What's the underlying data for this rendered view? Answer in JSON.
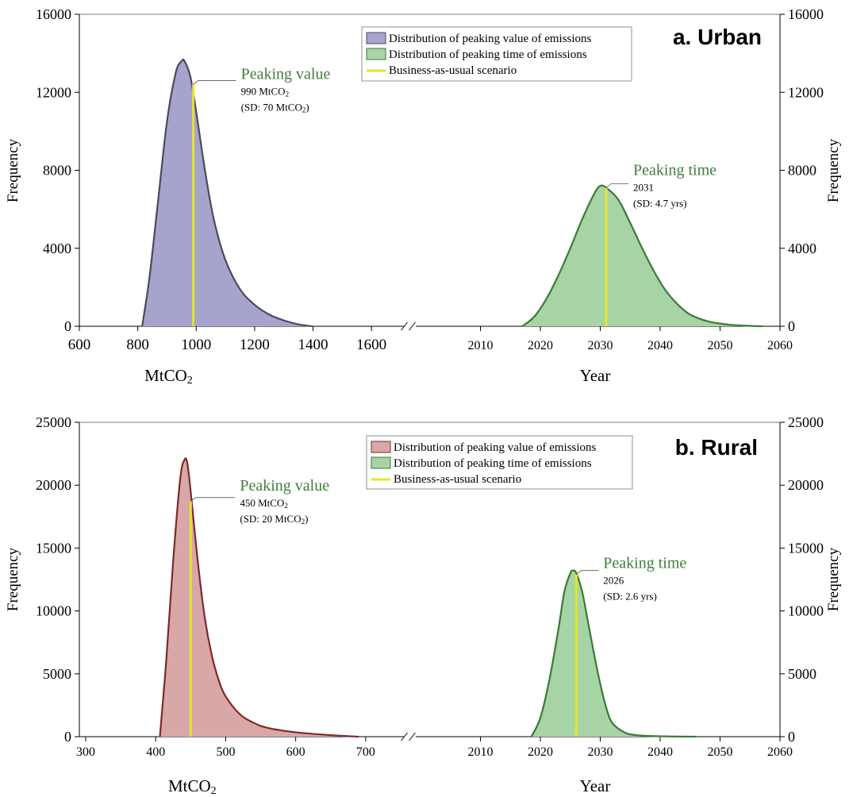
{
  "colors": {
    "value_fill_urban": "#a6a4cc",
    "value_stroke_urban": "#4a4a5e",
    "value_fill_rural": "#d9a7a7",
    "value_stroke_rural": "#7a2a2a",
    "time_fill": "#a7d4a4",
    "time_stroke": "#3a7a38",
    "bau_line": "#e4e62a",
    "annotation_text": "#3f7f3b"
  },
  "chart_data": [
    {
      "type": "area",
      "panel_label": "a. Urban",
      "left_axis": {
        "xlabel": "MtCO",
        "xlabel_sub": "2",
        "x_range": [
          600,
          1700
        ],
        "x_ticks": [
          "600",
          "800",
          "1000",
          "1200",
          "1400",
          "1600"
        ],
        "x_tick_values": [
          600,
          800,
          1000,
          1200,
          1400,
          1600
        ]
      },
      "right_axis": {
        "xlabel": "Year",
        "x_range": [
          2000,
          2060
        ],
        "x_ticks": [
          "2010",
          "2020",
          "2030",
          "2040",
          "2050",
          "2060"
        ],
        "x_tick_values": [
          2010,
          2020,
          2030,
          2040,
          2050,
          2060
        ]
      },
      "ylabel": "Frequency",
      "ylim": [
        0,
        16000
      ],
      "y_ticks": [
        "0",
        "4000",
        "8000",
        "12000",
        "16000"
      ],
      "y_tick_values": [
        0,
        4000,
        8000,
        12000,
        16000
      ],
      "legend": [
        "Distribution of peaking value of emissions",
        "Distribution of peaking time of emissions",
        "Business-as-usual scenario"
      ],
      "series": [
        {
          "axis": "left",
          "x": [
            815,
            840,
            870,
            900,
            930,
            950,
            960,
            980,
            1000,
            1030,
            1060,
            1100,
            1150,
            1200,
            1250,
            1300,
            1350,
            1395
          ],
          "y": [
            0,
            2500,
            6500,
            10500,
            13000,
            13600,
            13600,
            12800,
            11000,
            8000,
            5500,
            3400,
            1900,
            1100,
            600,
            300,
            100,
            0
          ]
        },
        {
          "axis": "right",
          "x": [
            2017,
            2019,
            2021,
            2023,
            2025,
            2027,
            2029,
            2030,
            2031,
            2033,
            2035,
            2037,
            2039,
            2041,
            2043,
            2045,
            2048,
            2051,
            2054,
            2057
          ],
          "y": [
            0,
            500,
            1400,
            2600,
            4000,
            5500,
            6800,
            7200,
            7100,
            6500,
            5300,
            4000,
            2800,
            1800,
            1100,
            600,
            250,
            100,
            30,
            0
          ]
        }
      ],
      "annotations": [
        {
          "axis": "left",
          "x": 990,
          "y": 12400,
          "title": "Peaking value",
          "line1": "990 MtCO",
          "line1_sub": "2",
          "line2_pre": "(SD: 70 MtCO",
          "line2_sub": "2",
          "line2_post": ")"
        },
        {
          "axis": "right",
          "x": 2031,
          "y": 7100,
          "title": "Peaking time",
          "line1": "2031",
          "line1_sub": "",
          "line2_pre": "(SD: 4.7 yrs)",
          "line2_sub": "",
          "line2_post": ""
        }
      ]
    },
    {
      "type": "area",
      "panel_label": "b. Rural",
      "left_axis": {
        "xlabel": "MtCO",
        "xlabel_sub": "2",
        "x_range": [
          300,
          750
        ],
        "x_ticks": [
          "300",
          "400",
          "500",
          "600",
          "700"
        ],
        "x_tick_values": [
          300,
          400,
          500,
          600,
          700
        ]
      },
      "right_axis": {
        "xlabel": "Year",
        "x_range": [
          2000,
          2060
        ],
        "x_ticks": [
          "2010",
          "2020",
          "2030",
          "2040",
          "2050",
          "2060"
        ],
        "x_tick_values": [
          2010,
          2020,
          2030,
          2040,
          2050,
          2060
        ]
      },
      "ylabel": "Frequency",
      "ylim": [
        0,
        25000
      ],
      "y_ticks": [
        "0",
        "5000",
        "10000",
        "15000",
        "20000",
        "25000"
      ],
      "y_tick_values": [
        0,
        5000,
        10000,
        15000,
        20000,
        25000
      ],
      "legend": [
        "Distribution of peaking value of emissions",
        "Distribution of peaking time of emissions",
        "Business-as-usual scenario"
      ],
      "series": [
        {
          "axis": "left",
          "x": [
            406,
            415,
            425,
            435,
            441,
            445,
            450,
            460,
            470,
            480,
            490,
            500,
            520,
            540,
            560,
            600,
            650,
            690
          ],
          "y": [
            0,
            6000,
            14000,
            20500,
            22000,
            21800,
            19500,
            14000,
            9500,
            6500,
            4500,
            3200,
            1800,
            1100,
            700,
            350,
            120,
            0
          ]
        },
        {
          "axis": "right",
          "x": [
            2018.5,
            2020,
            2021.5,
            2023,
            2024,
            2025,
            2025.5,
            2026,
            2027,
            2028,
            2029,
            2030,
            2031,
            2032,
            2034,
            2036,
            2040,
            2046
          ],
          "y": [
            0,
            1500,
            4500,
            8500,
            11500,
            13000,
            13200,
            13000,
            11500,
            9000,
            6500,
            4200,
            2300,
            1100,
            350,
            120,
            30,
            0
          ]
        }
      ],
      "annotations": [
        {
          "axis": "left",
          "x": 450,
          "y": 18700,
          "title": "Peaking value",
          "line1": "450 MtCO",
          "line1_sub": "2",
          "line2_pre": "(SD: 20 MtCO",
          "line2_sub": "2",
          "line2_post": ")"
        },
        {
          "axis": "right",
          "x": 2026,
          "y": 12900,
          "title": "Peaking time",
          "line1": "2026",
          "line1_sub": "",
          "line2_pre": "(SD: 2.6 yrs)",
          "line2_sub": "",
          "line2_post": ""
        }
      ]
    }
  ]
}
